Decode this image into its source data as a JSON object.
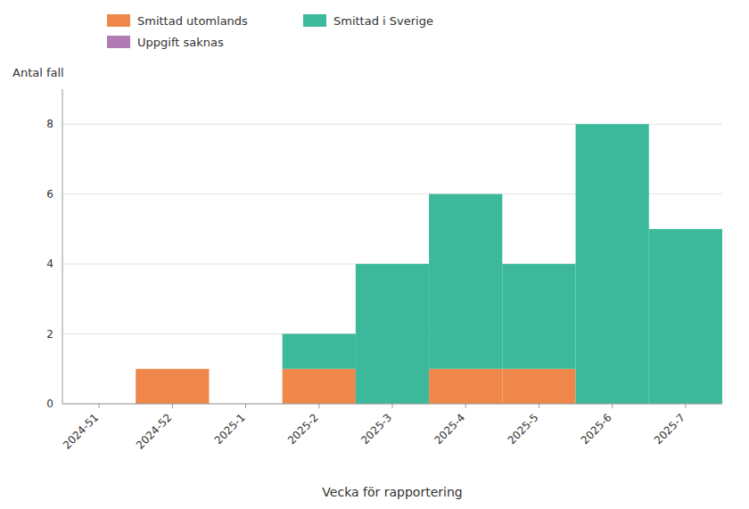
{
  "chart_data": {
    "type": "bar",
    "stacked": true,
    "grid": true,
    "xlabel": "Vecka för rapportering",
    "ylabel": "Antal fall",
    "categories": [
      "2024-51",
      "2024-52",
      "2025-1",
      "2025-2",
      "2025-3",
      "2025-4",
      "2025-5",
      "2025-6",
      "2025-7"
    ],
    "series": [
      {
        "name": "Smittad utomlands",
        "color": "#f0874a",
        "values": [
          0,
          1,
          0,
          1,
          0,
          1,
          1,
          0,
          0
        ]
      },
      {
        "name": "Smittad i Sverige",
        "color": "#3cb89a",
        "values": [
          0,
          0,
          0,
          1,
          4,
          5,
          3,
          8,
          5
        ]
      },
      {
        "name": "Uppgift saknas",
        "color": "#b07ab5",
        "values": [
          0,
          0,
          0,
          0,
          0,
          0,
          0,
          0,
          0
        ]
      }
    ],
    "ylim": [
      0,
      9
    ],
    "yticks": [
      0,
      2,
      4,
      6,
      8
    ]
  }
}
